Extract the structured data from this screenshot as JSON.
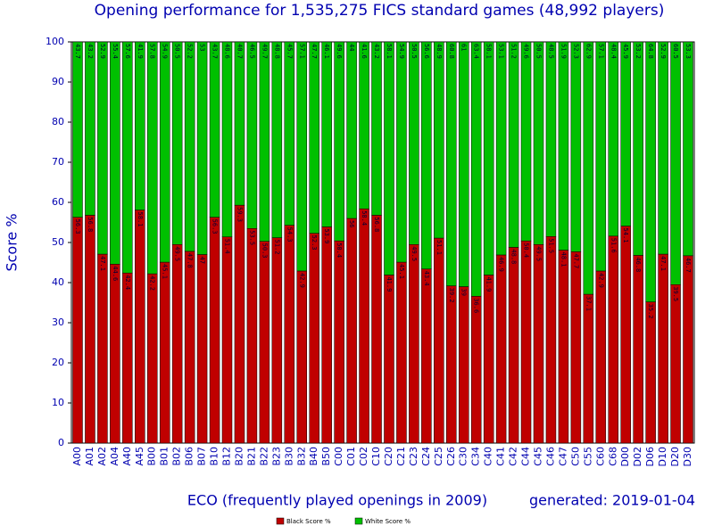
{
  "chart_data": {
    "type": "stacked_bar",
    "title": "Opening performance for 1,535,275 FICS standard games (48,992 players)",
    "x_label": "ECO (frequently played openings in 2009)",
    "y_label": "Score %",
    "annotation": "generated: 2019-01-04",
    "categories": [
      "A00",
      "A01",
      "A02",
      "A04",
      "A40",
      "A45",
      "B00",
      "B01",
      "B02",
      "B06",
      "B07",
      "B10",
      "B12",
      "B20",
      "B21",
      "B22",
      "B23",
      "B30",
      "B32",
      "B40",
      "B50",
      "C00",
      "C01",
      "C02",
      "C10",
      "C20",
      "C21",
      "C23",
      "C24",
      "C25",
      "C26",
      "C30",
      "C34",
      "C40",
      "C41",
      "C42",
      "C44",
      "C45",
      "C46",
      "C47",
      "C50",
      "C55",
      "C60",
      "C68",
      "D00",
      "D02",
      "D06",
      "D10",
      "D20",
      "D30"
    ],
    "series": [
      {
        "name": "Black Score %",
        "color": "#c00000",
        "values": [
          56.3,
          56.8,
          47.1,
          44.6,
          42.4,
          58.1,
          42.2,
          45.1,
          49.5,
          47.8,
          47.0,
          56.3,
          51.4,
          59.3,
          53.5,
          50.3,
          51.2,
          54.3,
          42.9,
          52.3,
          53.9,
          50.4,
          56.0,
          58.4,
          56.8,
          41.9,
          45.1,
          49.5,
          43.4,
          51.1,
          39.2,
          39.0,
          36.6,
          41.9,
          46.9,
          48.8,
          50.4,
          49.5,
          51.5,
          48.1,
          47.7,
          37.1,
          42.9,
          51.6,
          54.1,
          46.8,
          35.2,
          47.1,
          39.5,
          46.7
        ]
      },
      {
        "name": "White Score %",
        "color": "#00c000",
        "values": [
          43.7,
          43.2,
          52.9,
          55.4,
          57.6,
          41.9,
          57.8,
          54.9,
          50.5,
          52.2,
          53.0,
          43.7,
          48.6,
          40.7,
          46.5,
          49.7,
          48.8,
          45.7,
          57.1,
          47.7,
          46.1,
          49.6,
          44.0,
          41.6,
          43.2,
          58.1,
          54.9,
          50.5,
          56.6,
          48.9,
          60.8,
          61.0,
          63.4,
          58.1,
          53.1,
          51.2,
          49.6,
          50.5,
          48.5,
          51.9,
          52.3,
          62.9,
          57.1,
          48.4,
          45.9,
          53.2,
          64.8,
          52.9,
          60.5,
          53.3
        ]
      }
    ],
    "ylim": [
      0,
      100
    ],
    "yticks": [
      0,
      10,
      20,
      30,
      40,
      50,
      60,
      70,
      80,
      90,
      100
    ]
  }
}
